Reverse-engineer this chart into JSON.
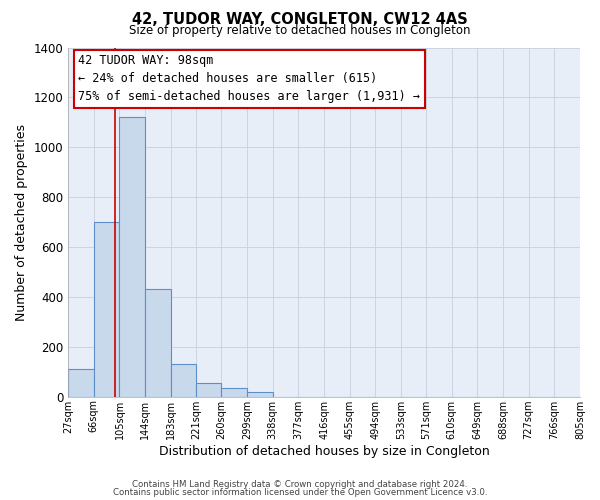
{
  "title": "42, TUDOR WAY, CONGLETON, CW12 4AS",
  "subtitle": "Size of property relative to detached houses in Congleton",
  "xlabel": "Distribution of detached houses by size in Congleton",
  "ylabel": "Number of detached properties",
  "bar_left_edges": [
    27,
    66,
    105,
    144,
    183,
    221,
    260,
    299,
    338,
    377,
    416,
    455,
    494,
    533,
    571,
    610,
    649,
    688,
    727,
    766
  ],
  "bar_heights": [
    110,
    700,
    1120,
    430,
    130,
    55,
    35,
    20,
    0,
    0,
    0,
    0,
    0,
    0,
    0,
    0,
    0,
    0,
    0,
    0
  ],
  "bin_width": 39,
  "bar_color": "#c9d9ec",
  "bar_edge_color": "#5b8fc9",
  "bar_edge_width": 0.8,
  "tick_labels": [
    "27sqm",
    "66sqm",
    "105sqm",
    "144sqm",
    "183sqm",
    "221sqm",
    "260sqm",
    "299sqm",
    "338sqm",
    "377sqm",
    "416sqm",
    "455sqm",
    "494sqm",
    "533sqm",
    "571sqm",
    "610sqm",
    "649sqm",
    "688sqm",
    "727sqm",
    "766sqm",
    "805sqm"
  ],
  "ylim": [
    0,
    1400
  ],
  "yticks": [
    0,
    200,
    400,
    600,
    800,
    1000,
    1200,
    1400
  ],
  "property_line_x": 98,
  "property_line_color": "#cc0000",
  "annotation_title": "42 TUDOR WAY: 98sqm",
  "annotation_line1": "← 24% of detached houses are smaller (615)",
  "annotation_line2": "75% of semi-detached houses are larger (1,931) →",
  "grid_color": "#c8d0dc",
  "background_color": "#e8eef7",
  "footer_line1": "Contains HM Land Registry data © Crown copyright and database right 2024.",
  "footer_line2": "Contains public sector information licensed under the Open Government Licence v3.0."
}
